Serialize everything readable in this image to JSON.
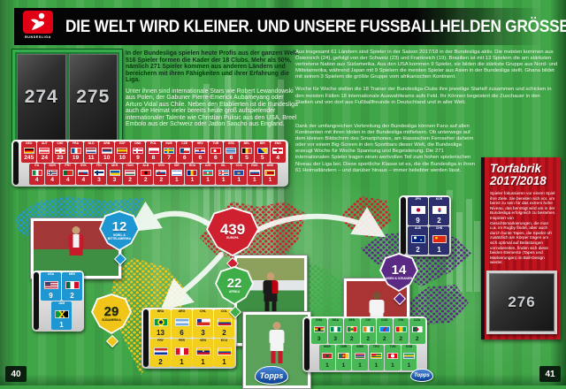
{
  "header": {
    "title": "DIE WELT WIRD KLEINER. UND UNSERE FUSSBALLHELDEN GRÖSSER.",
    "logo_text": "BUNDESLIGA"
  },
  "left_page": {
    "sticker_slots": [
      "274",
      "275"
    ],
    "intro_bold": "In der Bundesliga spielen heute Profis aus der ganzen Welt. 516 Spieler formen die Kader der 18 Clubs. Mehr als 50%, nämlich 271 Spieler kommen aus anderen Ländern und bereichern mit ihren Fähigkeiten und ihrer Erfahrung die Liga.",
    "intro": "Unter ihnen sind internationale Stars wie Robert Lewandowski aus Polen, der Gabuner Pierre-Emerick Aubameyang oder Arturo Vidal aus Chile. Neben den Etablierten ist die Bundesliga auch die Heimat vieler bereits heute groß aufspielender internationaler Talente wie Christian Pulisic aus den USA, Breel Embolo aus der Schweiz oder Jadon Sancho aus England.",
    "page_number": "40"
  },
  "right_page": {
    "para1": "Aus insgesamt 61 Ländern sind Spieler in der Saison 2017/18 in der Bundesliga aktiv. Die meisten kommen aus Österreich (24), gefolgt von der Schweiz (23) und Frankreich (19). Brasilien ist mit 13 Spielern die am stärksten vertretene Nation aus Südamerika. Aus den USA kommen 9 Spieler, sie bilden die stärkste Gruppe aus Nord- und Mittelamerika, während Japan mit 9 Spielern die meisten Spieler aus Asien in der Bundesliga stellt. Ghana bildet mit seinen 3 Spielern die größte Gruppe vom afrikanischen Kontinent.",
    "para2": "Woche für Woche stellen die 18 Trainer der Bundesliga-Clubs ihre jeweilige Startelf zusammen und schicken in den meisten Fällen 18 internationale Auswahlteams aufs Feld. Ihr Können begeistert die Zuschauer in den Stadien und von dort aus Fußballfreunde in Deutschland und in aller Welt.",
    "para3": "Dank der umfangreichen Verbreitung der Bundesliga können Fans auf allen Kontinenten mit ihren Idolen in der Bundesliga mitfiebern. Ob unterwegs auf dem kleinen Bildschirm des Smartphones, am klassischen Fernseher daheim oder vor einem Big-Screen in den Sportbars dieser Welt, die Bundesliga erzeugt Woche für Woche Spannung und Begeisterung. Die 271 internationalen Spieler tragen einen wertvollen Teil zum hohen spielerischen Niveau der Liga bei. Diese sportliche Klasse ist es, die die Bundesliga in ihren 61 Heimatländern – und darüber hinaus – immer beliebter werden lässt.",
    "torfabrik": {
      "title": "Torfabrik",
      "season": "2017/2018",
      "body": "Spieler fokussieren vor einem Spiel ihre Ziele. Sie bereiten sich vor, um bereit zu sein für das extrem hohe Niveau, das benötigt wird um in der Bundesliga erfolgreich zu bestehen. Inspiriert von Gesichtsmarkierungen, die man u.a. im Rugby findet, aber auch durch bunte Tapes, die Spieler oft zusätzlich am Körper tragen um sich optimal auf Belastungen vorzubereiten, finden sich diese beiden Elemente (Tapes und Markierungen) im Ball-Design wieder."
    },
    "sticker_slot": "276",
    "page_number": "41"
  },
  "map": {
    "badges": {
      "nordamerika": {
        "value": "12",
        "label": "NORD- & MITTELAMERIKA",
        "color": "#1d96d2"
      },
      "europa": {
        "value": "439",
        "label": "EUROPA",
        "color": "#cf2030"
      },
      "afrika": {
        "value": "22",
        "label": "AFRIKA",
        "color": "#3fae49"
      },
      "suedamerika": {
        "value": "29",
        "label": "SÜDAMERIKA",
        "color": "#f0c419"
      },
      "asien": {
        "value": "14",
        "label": "ASIEN & OZEANIEN",
        "color": "#5b2a84"
      }
    },
    "tables": {
      "europa": {
        "tile": "#c9242e",
        "text": "#ffffff",
        "rows": [
          [
            [
              "DEU",
              "245"
            ],
            [
              "AUT",
              "24"
            ],
            [
              "CHE",
              "23"
            ],
            [
              "FRA",
              "19"
            ],
            [
              "NLD",
              "11"
            ],
            [
              "SRB",
              "10"
            ],
            [
              "ESP",
              "10"
            ],
            [
              "DNK",
              "9"
            ],
            [
              "POL",
              "8"
            ],
            [
              "SWE",
              "7"
            ],
            [
              "CZE",
              "6"
            ],
            [
              "HRV",
              "6"
            ],
            [
              "TUR",
              "6"
            ],
            [
              "GRC",
              "6"
            ],
            [
              "BEL",
              "5"
            ],
            [
              "BIH",
              "5"
            ],
            [
              "ENG",
              "4"
            ]
          ],
          [
            [
              "ITA",
              "4"
            ],
            [
              "NOR",
              "4"
            ],
            [
              "PRT",
              "4"
            ],
            [
              "SVK",
              "4"
            ],
            [
              "FIN",
              "3"
            ],
            [
              "UKR",
              "3"
            ],
            [
              "HUN",
              "2"
            ],
            [
              "ALB",
              "2"
            ],
            [
              "SVN",
              "2"
            ],
            [
              "ISR",
              "1"
            ],
            [
              "ROU",
              "1"
            ],
            [
              "AZE",
              "1"
            ],
            [
              "ISL",
              "1"
            ],
            [
              "KOS",
              "1"
            ],
            [
              "RUS",
              "1"
            ],
            [
              "MNE",
              "1"
            ]
          ]
        ]
      },
      "nordamerika": {
        "tile": "#1d96d2",
        "text": "#ffffff",
        "rows": [
          [
            [
              "USA",
              "9"
            ],
            [
              "MEX",
              "2"
            ]
          ],
          [
            [
              "JAM",
              "1"
            ]
          ]
        ]
      },
      "suedamerika": {
        "tile": "#f2cf1d",
        "text": "#1a1a1a",
        "rows": [
          [
            [
              "BRA",
              "13"
            ],
            [
              "ARG",
              "6"
            ],
            [
              "CHL",
              "3"
            ],
            [
              "COL",
              "2"
            ]
          ],
          [
            [
              "PRY",
              "2"
            ],
            [
              "PER",
              "1"
            ],
            [
              "VEN",
              "1"
            ],
            [
              "ECU",
              "1"
            ]
          ]
        ]
      },
      "afrika": {
        "tile": "#49b857",
        "text": "#0f3018",
        "rows": [
          [
            [
              "GHA",
              "3"
            ],
            [
              "NGA",
              "3"
            ],
            [
              "SEN",
              "2"
            ],
            [
              "CIV",
              "2"
            ],
            [
              "COD",
              "2"
            ],
            [
              "GIN",
              "2"
            ],
            [
              "DZA",
              "2"
            ]
          ],
          [
            [
              "MAR",
              "1"
            ],
            [
              "CMR",
              "1"
            ],
            [
              "GMB",
              "1"
            ],
            [
              "TGO",
              "1"
            ],
            [
              "TUN",
              "1"
            ],
            [
              "GAB",
              "1"
            ]
          ]
        ]
      },
      "asien": {
        "tile": "#2b2f6e",
        "text": "#ffffff",
        "rows": [
          [
            [
              "JPN",
              "9"
            ],
            [
              "KOR",
              "2"
            ]
          ],
          [
            [
              "AUS",
              "2"
            ],
            [
              "CHN",
              "1"
            ]
          ]
        ]
      }
    }
  },
  "footer": {
    "brand": "Topps"
  }
}
